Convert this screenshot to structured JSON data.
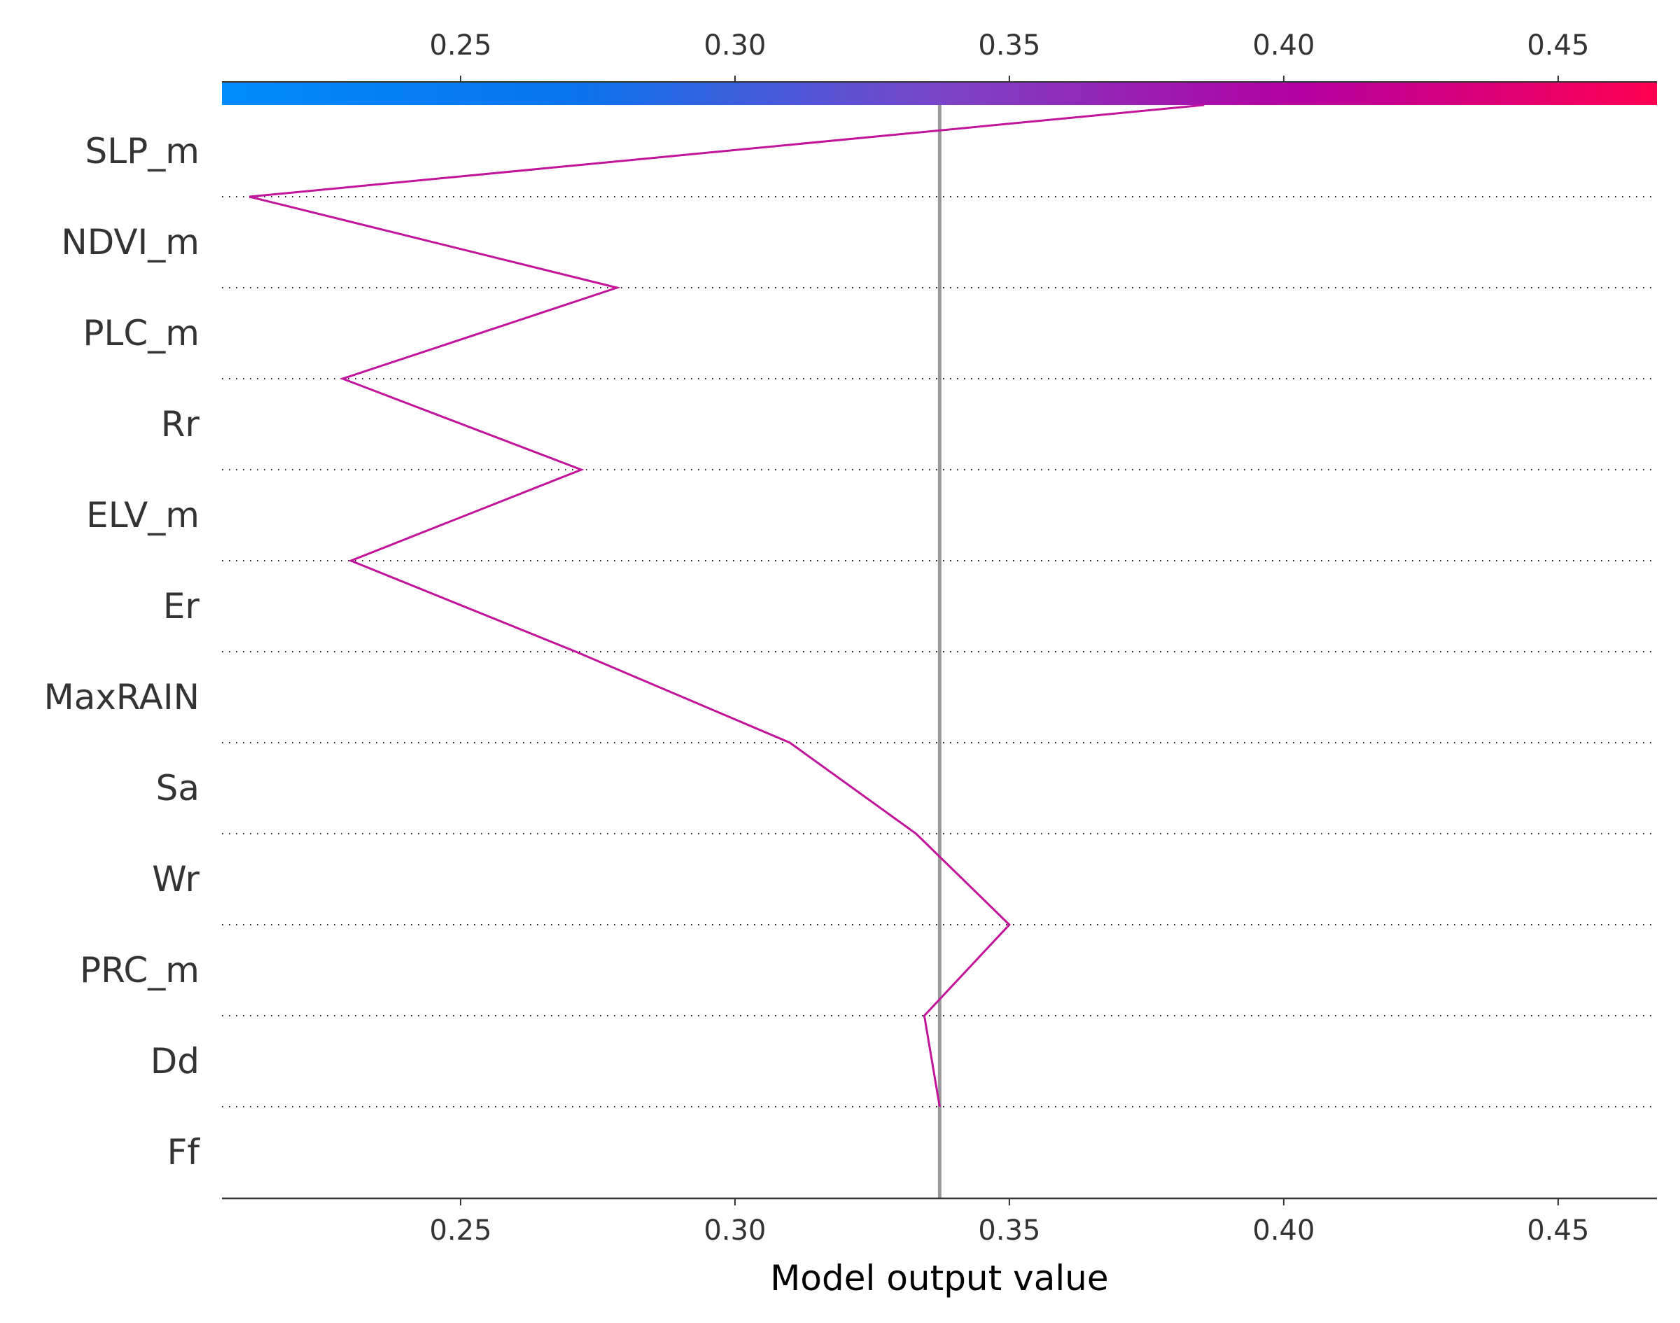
{
  "chart_data": {
    "type": "line",
    "subtype": "shap-decision-plot",
    "xlabel": "Model output value",
    "xlim": [
      0.2065,
      0.468
    ],
    "ticks": [
      0.25,
      0.3,
      0.35,
      0.4,
      0.45
    ],
    "tick_labels": [
      "0.25",
      "0.30",
      "0.35",
      "0.40",
      "0.45"
    ],
    "base_value": 0.3373,
    "features": [
      "SLP_m",
      "NDVI_m",
      "PLC_m",
      "Rr",
      "ELV_m",
      "Er",
      "MaxRAIN",
      "Sa",
      "Wr",
      "PRC_m",
      "Dd",
      "Ff"
    ],
    "path": [
      0.3855,
      0.2115,
      0.2785,
      0.2285,
      0.272,
      0.23,
      0.271,
      0.31,
      0.333,
      0.35,
      0.3345,
      0.3373
    ],
    "colorbar": {
      "stops": [
        "#008bfb",
        "#0a73ec",
        "#7a45c8",
        "#b300a1",
        "#ff0052"
      ],
      "range": [
        0.2065,
        0.468
      ]
    },
    "colors": {
      "line": "#c2139b",
      "base_line": "#999999",
      "grid": "#333333",
      "axis": "#333333"
    },
    "grid": "dotted horizontal separators"
  }
}
